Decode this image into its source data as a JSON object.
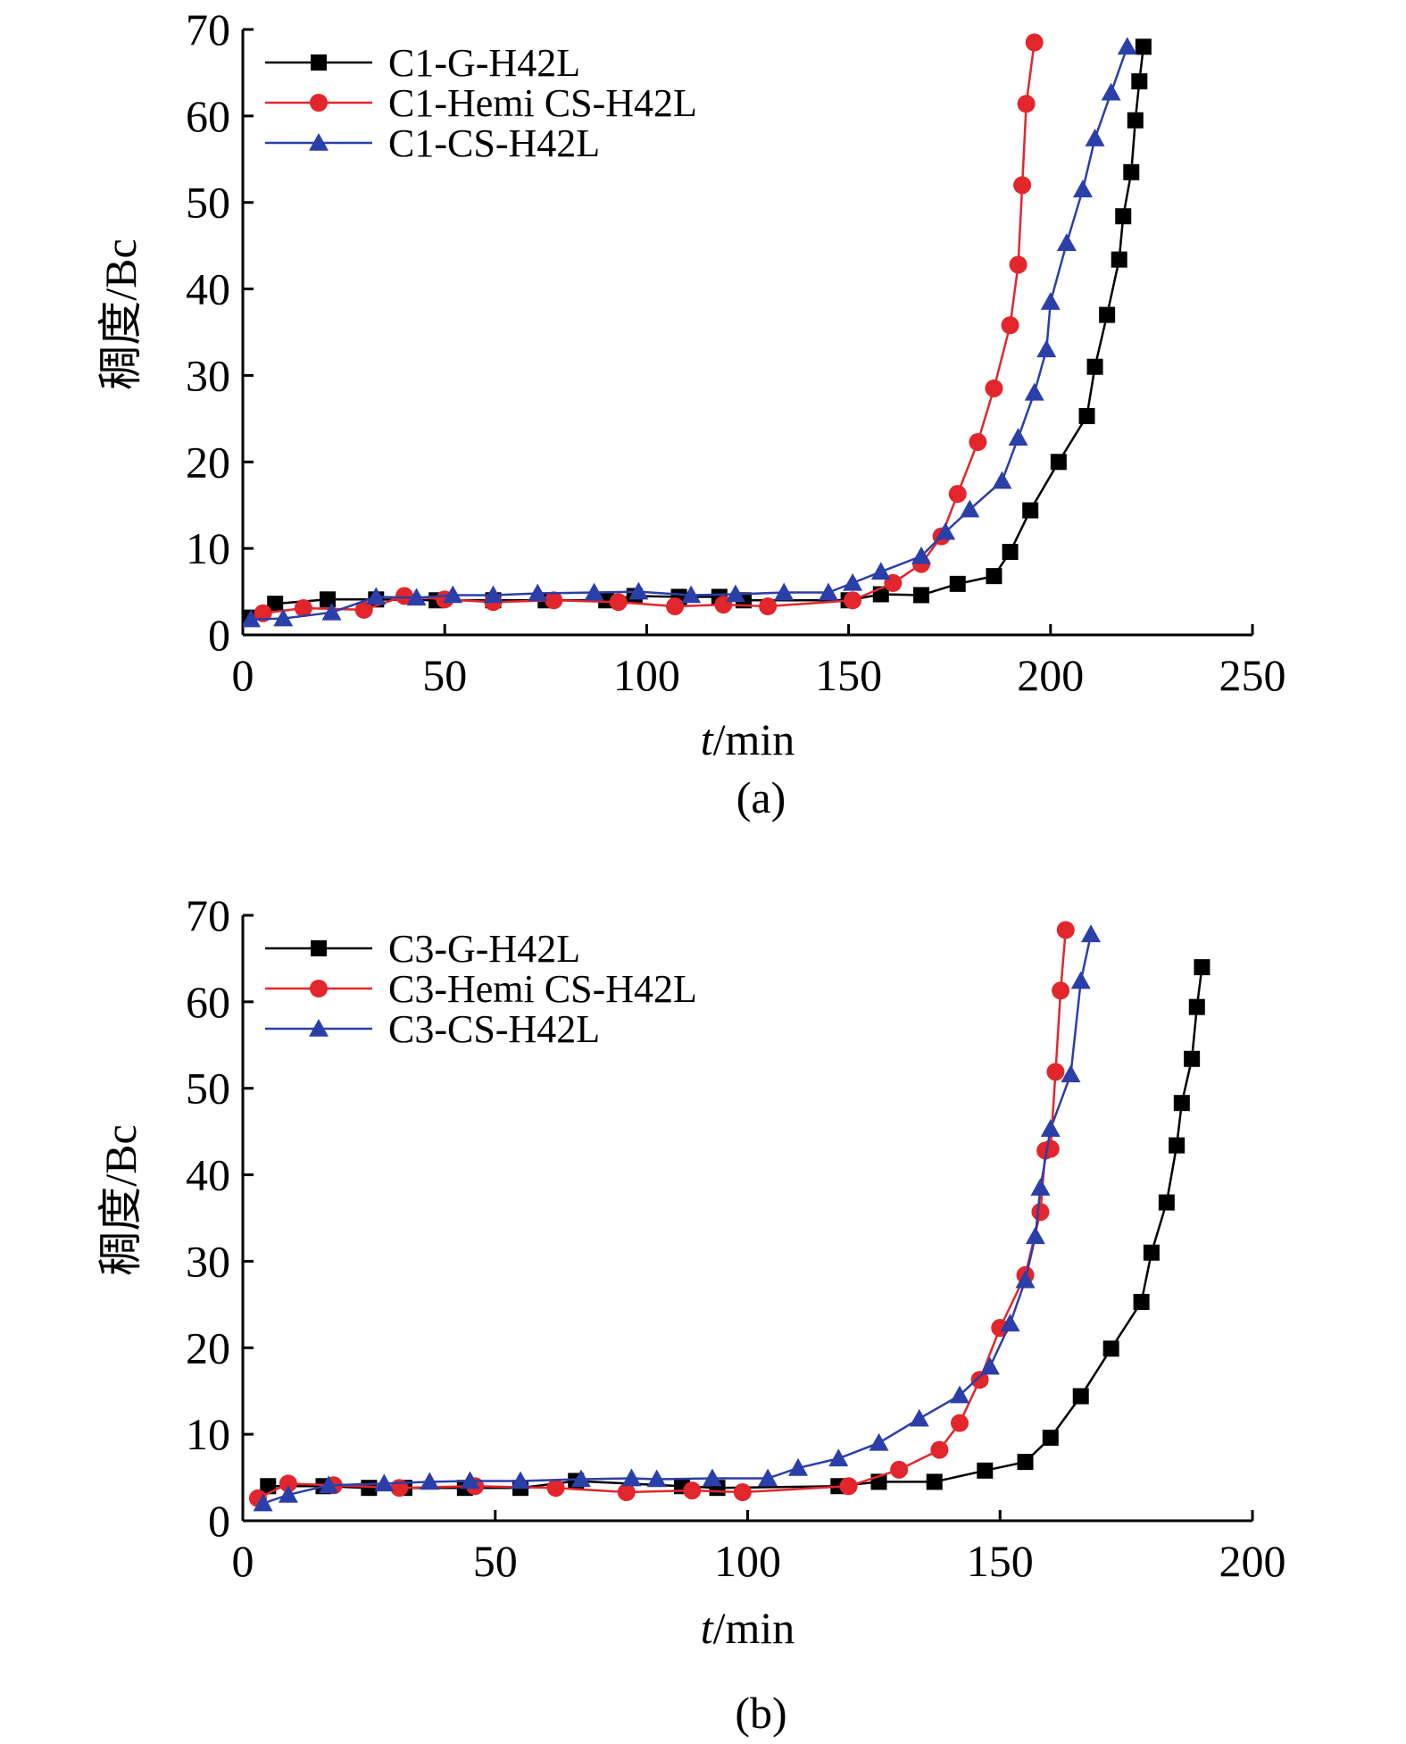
{
  "chart_data": [
    {
      "type": "line",
      "caption": "(a)",
      "xlabel_italic": "t",
      "xlabel_unit": "/min",
      "ylabel": "稠度/Bc",
      "xlim": [
        0,
        250
      ],
      "ylim": [
        0,
        70
      ],
      "xticks": [
        0,
        50,
        100,
        150,
        200,
        250
      ],
      "yticks": [
        0,
        10,
        20,
        30,
        40,
        50,
        60,
        70
      ],
      "legend_position": "top-left",
      "series": [
        {
          "name": "C1-G-H42L",
          "color": "#000000",
          "marker": "square",
          "x": [
            1,
            8,
            21,
            33,
            48,
            62,
            75,
            90,
            97,
            108,
            118,
            124,
            150,
            158,
            168,
            177,
            186,
            190,
            195,
            202,
            209,
            211,
            214,
            217,
            218,
            220,
            221,
            222,
            223
          ],
          "y": [
            2,
            3.6,
            4.1,
            4.1,
            4,
            4,
            4,
            4,
            4.5,
            4.4,
            4.4,
            4,
            4,
            4.7,
            4.6,
            5.9,
            6.8,
            9.6,
            14.4,
            20,
            25.3,
            31,
            37,
            43.4,
            48.4,
            53.5,
            59.5,
            64,
            68
          ]
        },
        {
          "name": "C1-Hemi CS-H42L",
          "color": "#e3262c",
          "marker": "circle",
          "x": [
            5,
            15,
            30,
            40,
            50,
            62,
            77,
            93,
            107,
            119,
            130,
            151,
            161,
            168,
            173,
            177,
            182,
            186,
            190,
            192,
            193,
            194,
            196
          ],
          "y": [
            2.5,
            3.1,
            2.9,
            4.5,
            4.1,
            3.8,
            4,
            3.8,
            3.3,
            3.5,
            3.3,
            4,
            6,
            8.2,
            11.4,
            16.3,
            22.3,
            28.5,
            35.8,
            42.8,
            52,
            61.4,
            68.5
          ]
        },
        {
          "name": "C1-CS-H42L",
          "color": "#2b3fa8",
          "marker": "triangle",
          "x": [
            2,
            10,
            22,
            33,
            43,
            52,
            62,
            73,
            87,
            98,
            111,
            122,
            134,
            145,
            151,
            158,
            168,
            174,
            180,
            188,
            192,
            196,
            199,
            200,
            204,
            208,
            211,
            215,
            219
          ],
          "y": [
            1.8,
            1.9,
            2.6,
            4.4,
            4.3,
            4.6,
            4.6,
            4.8,
            4.9,
            5,
            4.6,
            4.7,
            4.9,
            4.9,
            6,
            7.3,
            9.1,
            11.9,
            14.5,
            17.8,
            22.8,
            28,
            33,
            38.5,
            45.3,
            51.5,
            57.4,
            62.7,
            68
          ]
        }
      ]
    },
    {
      "type": "line",
      "caption": "(b)",
      "xlabel_italic": "t",
      "xlabel_unit": "/min",
      "ylabel": "稠度/Bc",
      "xlim": [
        0,
        200
      ],
      "ylim": [
        0,
        70
      ],
      "xticks": [
        0,
        50,
        100,
        150,
        200
      ],
      "yticks": [
        0,
        10,
        20,
        30,
        40,
        50,
        60,
        70
      ],
      "legend_position": "top-left",
      "series": [
        {
          "name": "C3-G-H42L",
          "color": "#000000",
          "marker": "square",
          "x": [
            5,
            16,
            25,
            32,
            44,
            55,
            66,
            87,
            94,
            118,
            126,
            137,
            147,
            155,
            160,
            166,
            172,
            178,
            180,
            183,
            185,
            186,
            188,
            189,
            190
          ],
          "y": [
            4,
            4,
            3.8,
            3.8,
            3.8,
            3.8,
            4.6,
            4,
            3.8,
            4,
            4.5,
            4.5,
            5.8,
            6.8,
            9.6,
            14.4,
            19.9,
            25.3,
            31,
            36.8,
            43.4,
            48.3,
            53.4,
            59.4,
            64
          ]
        },
        {
          "name": "C3-Hemi CS-H42L",
          "color": "#e3262c",
          "marker": "circle",
          "x": [
            3,
            9,
            18,
            31,
            46,
            62,
            76,
            89,
            99,
            120,
            130,
            138,
            142,
            146,
            150,
            155,
            158,
            159,
            160,
            161,
            162,
            163
          ],
          "y": [
            2.6,
            4.3,
            4.1,
            3.8,
            4,
            3.8,
            3.3,
            3.5,
            3.3,
            4,
            5.9,
            8.2,
            11.3,
            16.3,
            22.3,
            28.4,
            35.7,
            42.8,
            43,
            51.9,
            61.3,
            68.3
          ]
        },
        {
          "name": "C3-CS-H42L",
          "color": "#2b3fa8",
          "marker": "triangle",
          "x": [
            4,
            9,
            17,
            28,
            37,
            45,
            55,
            67,
            77,
            82,
            93,
            104,
            110,
            118,
            126,
            134,
            142,
            148,
            152,
            155,
            157,
            158,
            160,
            164,
            166,
            168
          ],
          "y": [
            2,
            3,
            4.1,
            4.3,
            4.5,
            4.6,
            4.6,
            4.8,
            4.9,
            4.8,
            4.9,
            4.9,
            6.1,
            7.2,
            9,
            11.8,
            14.5,
            17.8,
            22.8,
            27.8,
            32.9,
            38.5,
            45.3,
            51.6,
            62.4,
            67.8
          ]
        }
      ]
    }
  ]
}
